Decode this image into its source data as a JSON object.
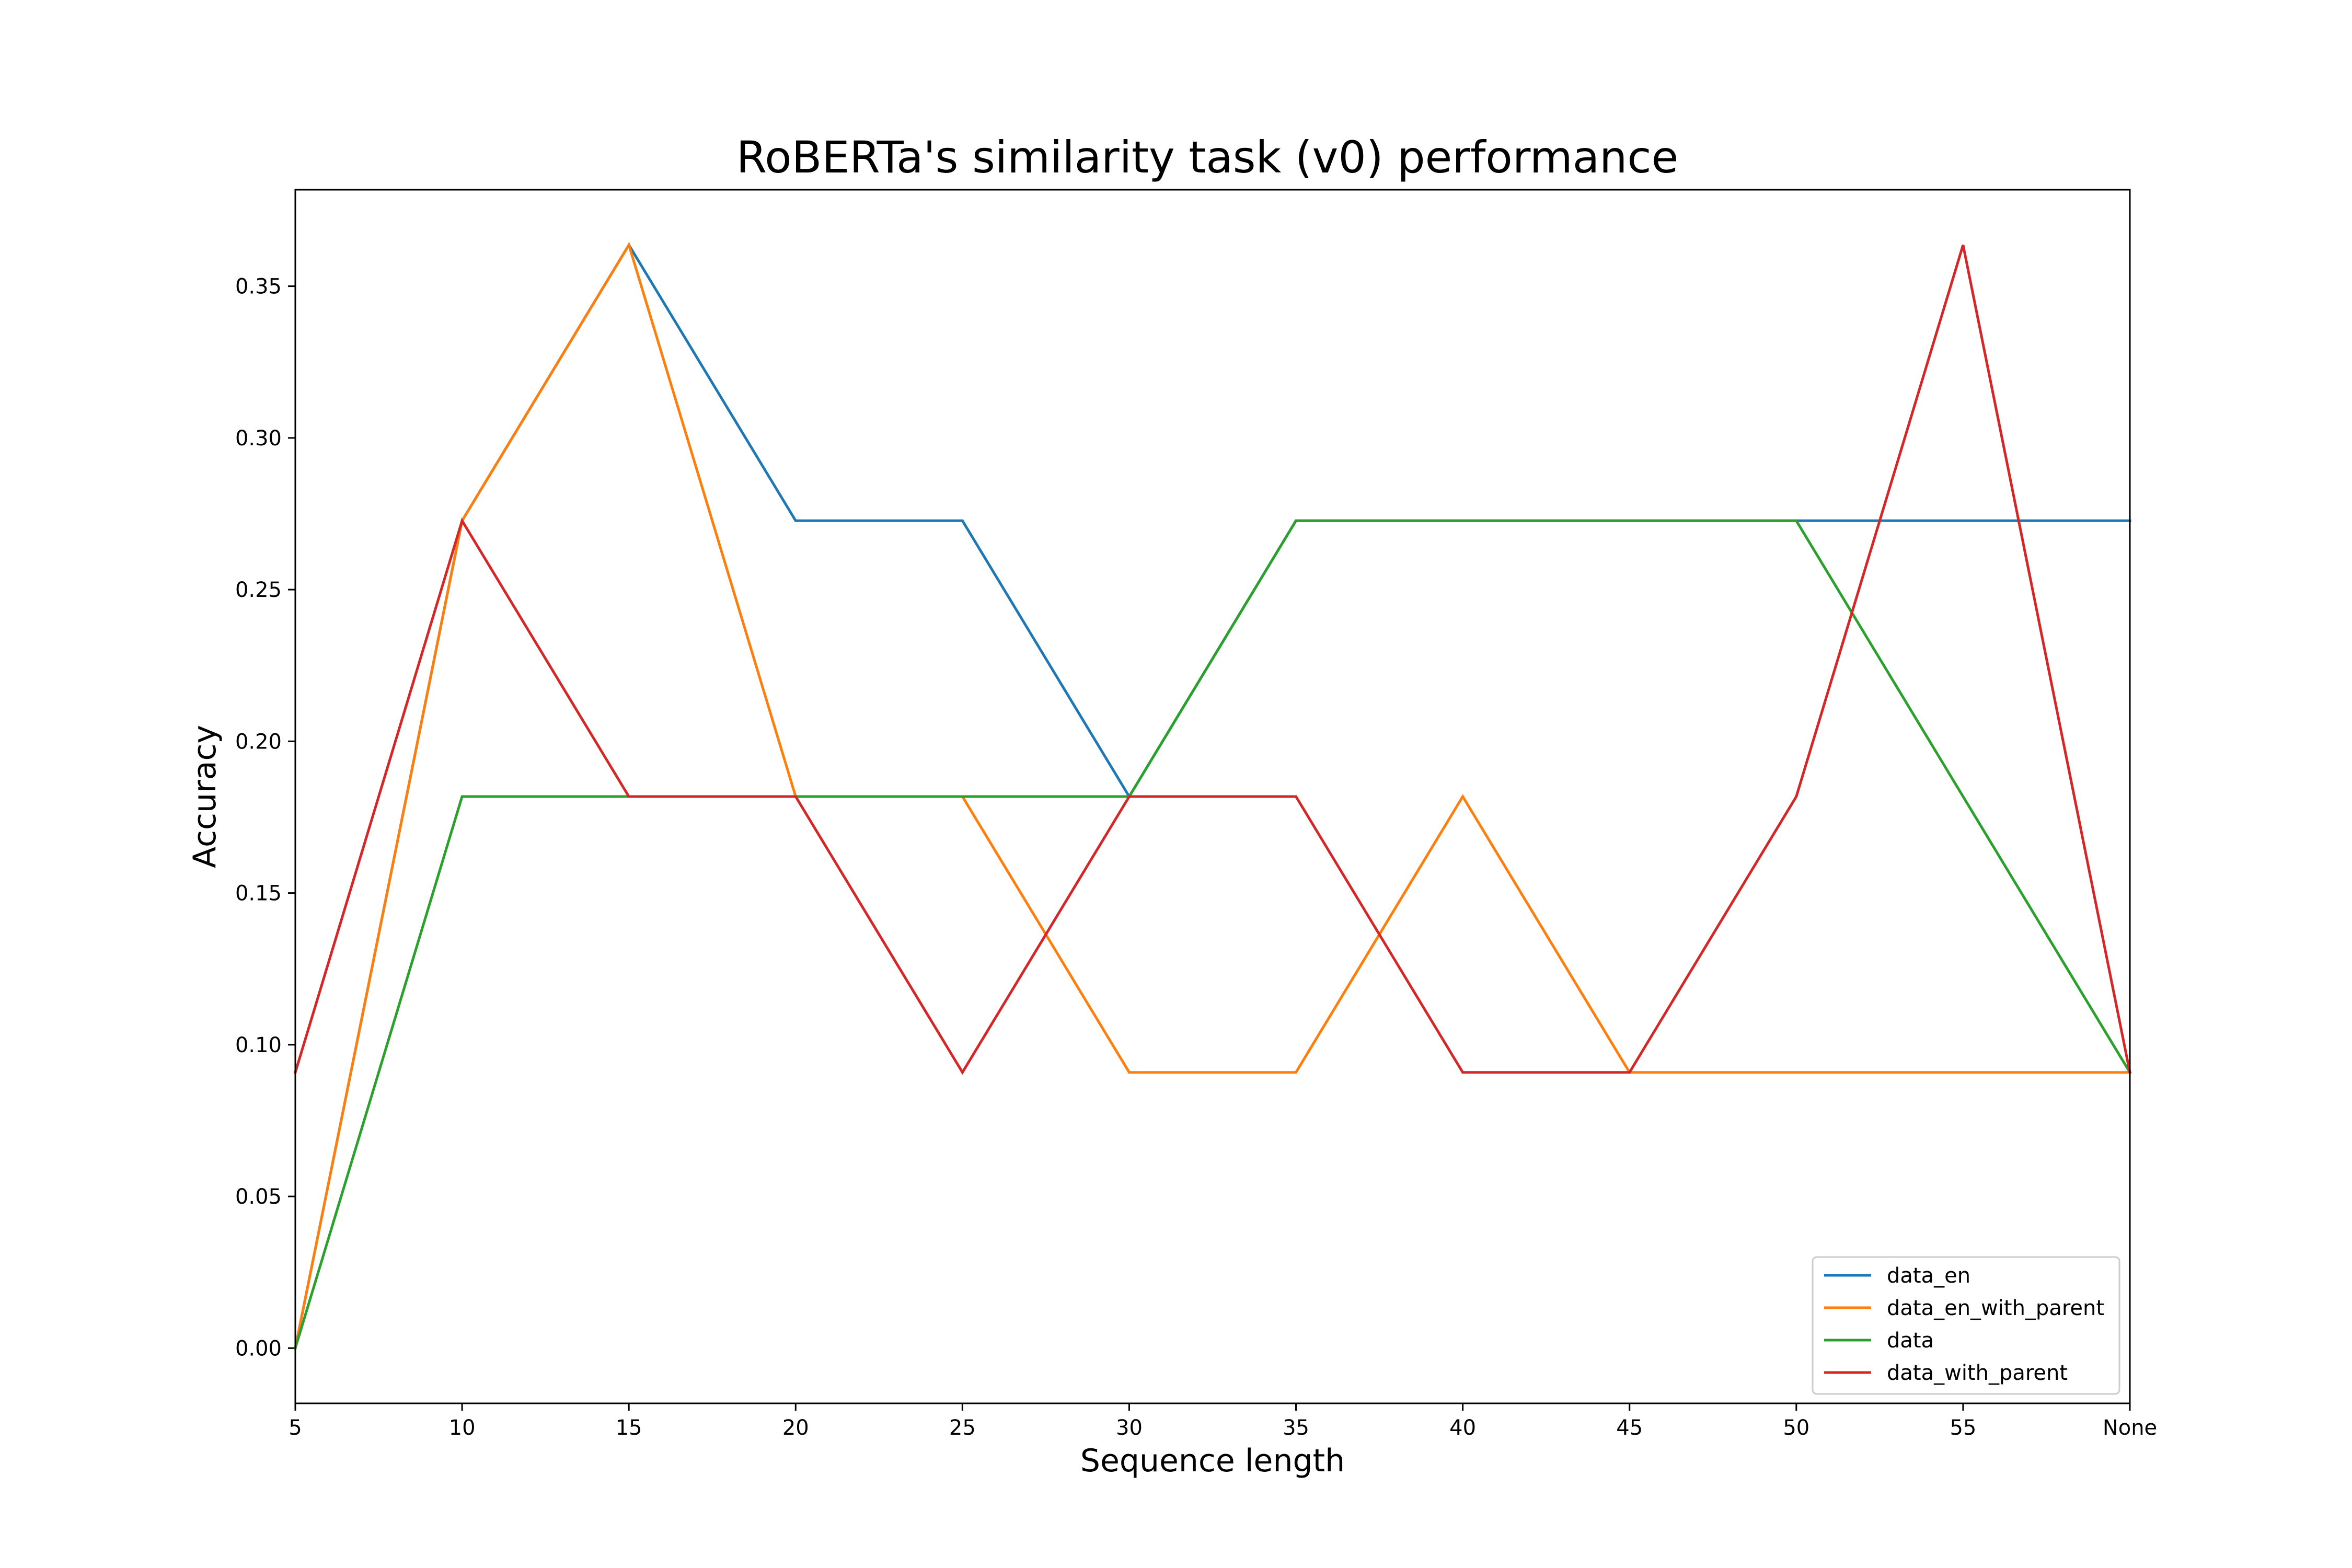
{
  "chart_data": {
    "type": "line",
    "title": "RoBERTa's similarity task (v0) performance",
    "xlabel": "Sequence length",
    "ylabel": "Accuracy",
    "categories": [
      "5",
      "10",
      "15",
      "20",
      "25",
      "30",
      "35",
      "40",
      "45",
      "50",
      "55",
      "None"
    ],
    "y_ticks": [
      "0.00",
      "0.05",
      "0.10",
      "0.15",
      "0.20",
      "0.25",
      "0.30",
      "0.35"
    ],
    "ylim": [
      -0.0182,
      0.3818
    ],
    "grid": false,
    "legend_position": "lower-right",
    "series": [
      {
        "name": "data_en",
        "color": "#1f77b4",
        "values": [
          0.0,
          0.2727,
          0.3636,
          0.2727,
          0.2727,
          0.1818,
          0.2727,
          0.2727,
          0.2727,
          0.2727,
          0.2727,
          0.2727
        ]
      },
      {
        "name": "data_en_with_parent",
        "color": "#ff7f0e",
        "values": [
          0.0,
          0.2727,
          0.3636,
          0.1818,
          0.1818,
          0.0909,
          0.0909,
          0.1818,
          0.0909,
          0.0909,
          0.0909,
          0.0909
        ]
      },
      {
        "name": "data",
        "color": "#2ca02c",
        "values": [
          0.0,
          0.1818,
          0.1818,
          0.1818,
          0.1818,
          0.1818,
          0.2727,
          0.2727,
          0.2727,
          0.2727,
          0.1818,
          0.0909
        ]
      },
      {
        "name": "data_with_parent",
        "color": "#d62728",
        "values": [
          0.0909,
          0.2727,
          0.1818,
          0.1818,
          0.0909,
          0.1818,
          0.1818,
          0.0909,
          0.0909,
          0.1818,
          0.3636,
          0.0909
        ]
      }
    ]
  }
}
